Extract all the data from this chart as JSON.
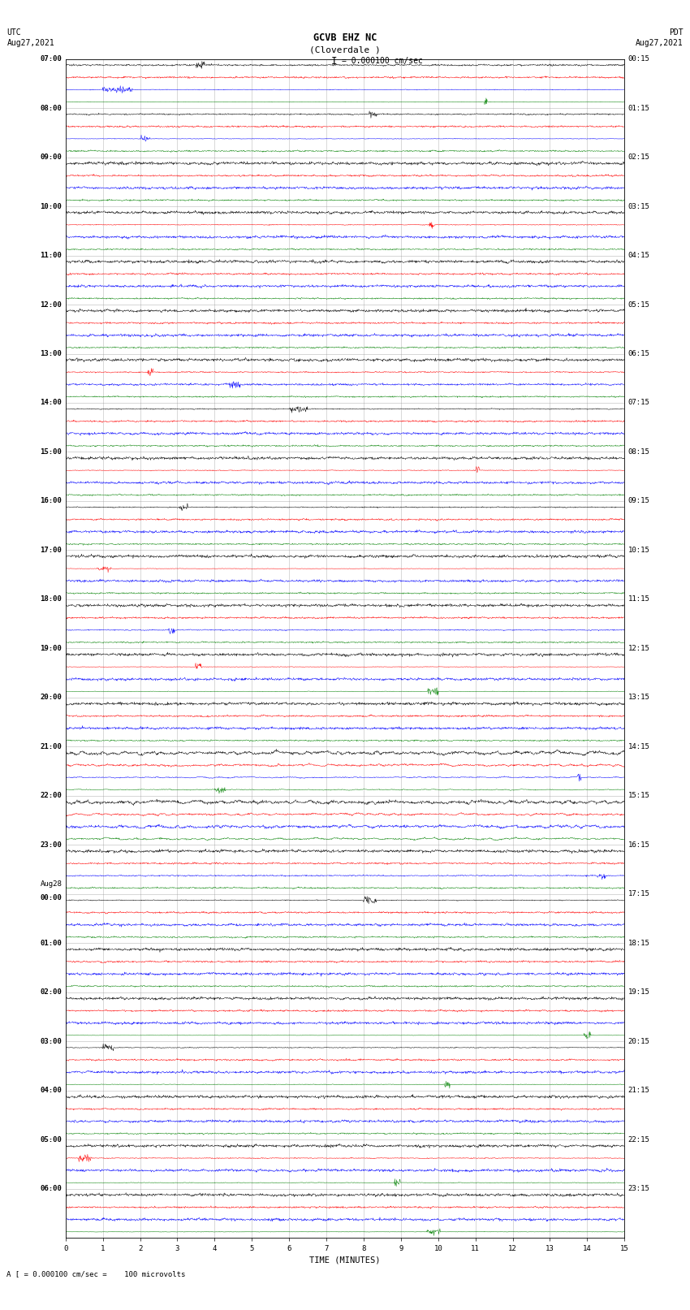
{
  "title_line1": "GCVB EHZ NC",
  "title_line2": "(Cloverdale )",
  "scale_label": "I = 0.000100 cm/sec",
  "footnote": "A [ = 0.000100 cm/sec =    100 microvolts",
  "xlabel": "TIME (MINUTES)",
  "utc_header": "UTC",
  "utc_date": "Aug27,2021",
  "pdt_header": "PDT",
  "pdt_date": "Aug27,2021",
  "utc_hour_labels": [
    "07:00",
    "08:00",
    "09:00",
    "10:00",
    "11:00",
    "12:00",
    "13:00",
    "14:00",
    "15:00",
    "16:00",
    "17:00",
    "18:00",
    "19:00",
    "20:00",
    "21:00",
    "22:00",
    "23:00",
    "Aug28",
    "00:00",
    "01:00",
    "02:00",
    "03:00",
    "04:00",
    "05:00",
    "06:00"
  ],
  "utc_is_aug28": [
    false,
    false,
    false,
    false,
    false,
    false,
    false,
    false,
    false,
    false,
    false,
    false,
    false,
    false,
    false,
    false,
    false,
    true,
    false,
    false,
    false,
    false,
    false,
    false,
    false
  ],
  "pdt_hour_labels": [
    "00:15",
    "01:15",
    "02:15",
    "03:15",
    "04:15",
    "05:15",
    "06:15",
    "07:15",
    "08:15",
    "09:15",
    "10:15",
    "11:15",
    "12:15",
    "13:15",
    "14:15",
    "15:15",
    "16:15",
    "17:15",
    "18:15",
    "19:15",
    "20:15",
    "21:15",
    "22:15",
    "23:15"
  ],
  "colors": [
    "black",
    "red",
    "blue",
    "green"
  ],
  "bg_color": "white",
  "n_hours": 24,
  "traces_per_hour": 4,
  "n_minutes": 15,
  "samples_per_row": 1500,
  "fig_width": 8.5,
  "fig_height": 16.13,
  "dpi": 100
}
